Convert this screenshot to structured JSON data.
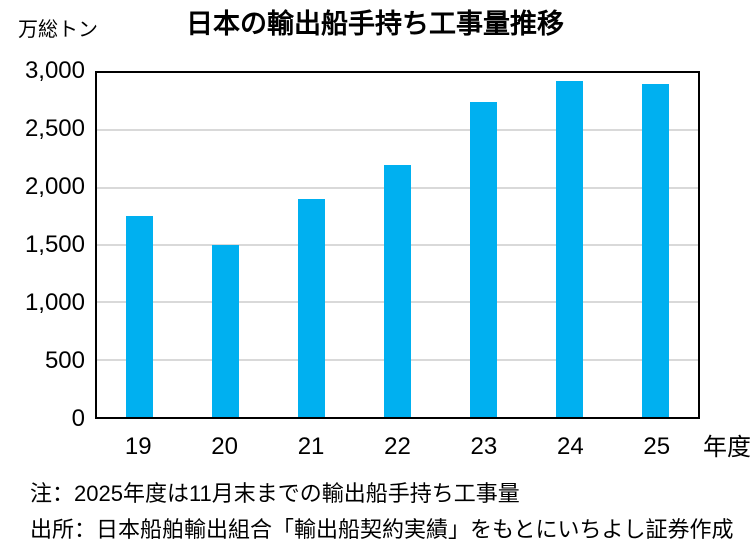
{
  "chart": {
    "title": "日本の輸出船手持ち工事量推移",
    "unit_label": "万総トン",
    "x_axis_suffix": "年度",
    "note": "注：2025年度は11月末までの輸出船手持ち工事量",
    "source": "出所：日本船舶輸出組合「輸出船契約実績」をもとにいちよし証券作成"
  },
  "chart_data": {
    "type": "bar",
    "title": "日本の輸出船手持ち工事量推移",
    "categories": [
      "19",
      "20",
      "21",
      "22",
      "23",
      "24",
      "25"
    ],
    "values": [
      1750,
      1500,
      1900,
      2200,
      2750,
      2930,
      2900
    ],
    "xlabel": "年度",
    "ylabel": "万総トン",
    "ylim": [
      0,
      3000
    ],
    "ytick_step": 500,
    "y_tick_labels": [
      "0",
      "500",
      "1,000",
      "1,500",
      "2,000",
      "2,500",
      "3,000"
    ],
    "grid": "horizontal-only",
    "legend": "none",
    "bar_color": "#00B0F0",
    "gridline_color": "#D9D9D9",
    "border_color": "#000000",
    "text_color": "#000000"
  }
}
